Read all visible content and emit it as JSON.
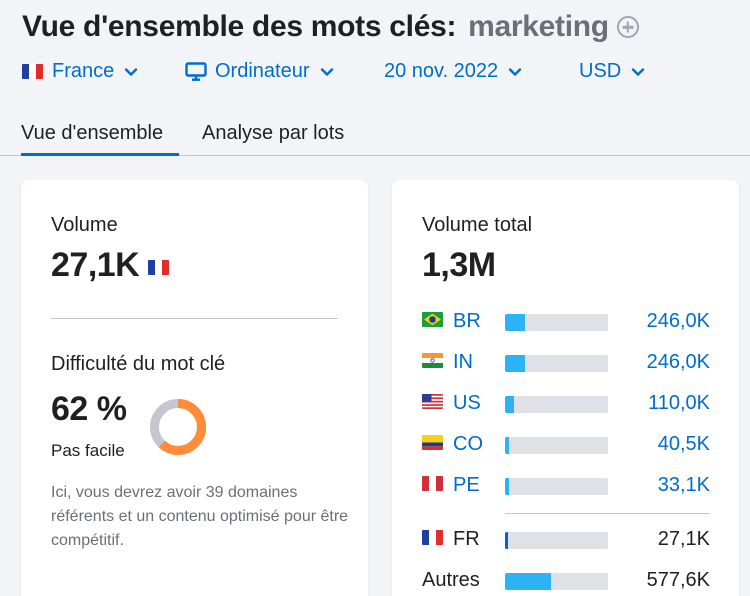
{
  "header": {
    "title": "Vue d'ensemble des mots clés:",
    "keyword": "marketing"
  },
  "filters": {
    "country": "France",
    "device": "Ordinateur",
    "date": "20 nov. 2022",
    "currency": "USD"
  },
  "tabs": [
    {
      "label": "Vue d'ensemble",
      "active": true
    },
    {
      "label": "Analyse par lots",
      "active": false
    }
  ],
  "volume_card": {
    "volume_label": "Volume",
    "volume_value": "27,1K",
    "difficulty_label": "Difficulté du mot clé",
    "difficulty_value": "62 %",
    "difficulty_percent": 62,
    "difficulty_text": "Pas facile",
    "description": "Ici, vous devrez avoir 39 domaines référents et un contenu optimisé pour être compétitif."
  },
  "total_card": {
    "label": "Volume total",
    "value": "1,3M",
    "countries": [
      {
        "code": "BR",
        "value": "246,0K",
        "share": 0.19
      },
      {
        "code": "IN",
        "value": "246,0K",
        "share": 0.19
      },
      {
        "code": "US",
        "value": "110,0K",
        "share": 0.09
      },
      {
        "code": "CO",
        "value": "40,5K",
        "share": 0.04
      },
      {
        "code": "PE",
        "value": "33,1K",
        "share": 0.04
      }
    ],
    "own": {
      "code": "FR",
      "value": "27,1K",
      "share": 0.03
    },
    "others": {
      "label": "Autres",
      "value": "577,6K",
      "share": 0.45
    }
  },
  "colors": {
    "accent": "#006dca",
    "bar_light": "#2bb3f5",
    "bar_dark": "#0a5fd6",
    "track": "#dfe1e7",
    "donut_fill": "#ff8c3a",
    "donut_rest": "#c4c7cf"
  },
  "icons": [
    "add-circle-icon",
    "chevron-down-icon",
    "desktop-monitor-icon",
    "flag-icons"
  ]
}
